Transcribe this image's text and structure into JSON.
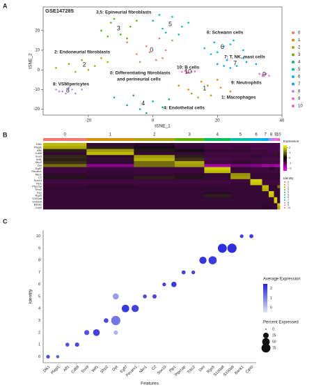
{
  "chart_data": [
    {
      "type": "scatter",
      "panel": "A",
      "title": "GSE147285",
      "x_label": "tSNE_1",
      "y_label": "tSNE_2",
      "xlim": [
        -34,
        40
      ],
      "ylim": [
        -23,
        32
      ],
      "xticks": [
        -20,
        0,
        20,
        40
      ],
      "yticks": [
        -20,
        -10,
        0,
        10,
        20
      ],
      "series": [
        {
          "name": "0",
          "color": "#F8766D",
          "x": [
            -8,
            -5,
            -2,
            1,
            4,
            6,
            -4,
            2,
            -1,
            3
          ],
          "y": [
            14,
            8,
            12,
            5,
            10,
            15,
            4,
            16,
            9,
            6
          ]
        },
        {
          "name": "1",
          "color": "#DB8E00",
          "x": [
            8,
            12,
            15,
            18,
            21,
            24,
            14,
            20,
            11,
            17
          ],
          "y": [
            -8,
            -12,
            -6,
            -13,
            -9,
            -11,
            -14,
            -5,
            -10,
            -8
          ]
        },
        {
          "name": "2",
          "color": "#AEA200",
          "x": [
            -30,
            -26,
            -22,
            -18,
            -14,
            -20,
            -24,
            -16
          ],
          "y": [
            1,
            3,
            5,
            2,
            4,
            0,
            -1,
            6
          ]
        },
        {
          "name": "3",
          "color": "#64B200",
          "x": [
            -16,
            -13,
            -10,
            -7,
            -12,
            -8,
            -14,
            -5
          ],
          "y": [
            20,
            24,
            18,
            22,
            26,
            16,
            17,
            25
          ]
        },
        {
          "name": "4",
          "color": "#00BD5C",
          "x": [
            -12,
            -8,
            -4,
            0,
            3,
            -6,
            -2,
            5
          ],
          "y": [
            -14,
            -18,
            -20,
            -16,
            -19,
            -13,
            -22,
            -15
          ]
        },
        {
          "name": "5",
          "color": "#00C1A7",
          "x": [
            0,
            3,
            6,
            9,
            11,
            4,
            8,
            2
          ],
          "y": [
            25,
            21,
            27,
            22,
            24,
            19,
            18,
            28
          ]
        },
        {
          "name": "6",
          "color": "#00BADE",
          "x": [
            16,
            19,
            22,
            25,
            28,
            20,
            24,
            18
          ],
          "y": [
            11,
            14,
            12,
            15,
            10,
            9,
            13,
            8
          ]
        },
        {
          "name": "7",
          "color": "#00A6FF",
          "x": [
            20,
            23,
            26,
            29,
            32,
            24,
            28,
            22
          ],
          "y": [
            3,
            5,
            2,
            4,
            3,
            1,
            6,
            2
          ]
        },
        {
          "name": "8",
          "color": "#B385FF",
          "x": [
            -30,
            -28,
            -26,
            -24,
            -22,
            -27,
            -25,
            -29
          ],
          "y": [
            -10,
            -11,
            -9,
            -12,
            -10,
            -12,
            -10,
            -11
          ]
        },
        {
          "name": "9",
          "color": "#EF67EB",
          "x": [
            33,
            34,
            35,
            36,
            34,
            35
          ],
          "y": [
            -2,
            -3,
            -2,
            -3,
            -2.5,
            -2
          ]
        },
        {
          "name": "10",
          "color": "#FF63B6",
          "x": [
            9,
            10,
            11,
            12,
            13,
            10.5
          ],
          "y": [
            -1,
            -0.5,
            -1.5,
            -1,
            -0.8,
            -1.2
          ]
        }
      ],
      "annotations": [
        "3,5: Epineurial fibroblasts",
        "6: Schwann cells",
        "2: Endoneurial fibroblasts",
        "7: T, NK, mast cells",
        "10: B cells",
        "0: Differentiating fibroblasts",
        "and perineurial cells",
        "8: VSM/pericytes",
        "9: Neutrophils",
        "1: Macrophages",
        "4: Endothelial cells"
      ]
    },
    {
      "type": "heatmap",
      "panel": "B",
      "categories": [
        "0",
        "1",
        "2",
        "3",
        "4",
        "5",
        "6",
        "7",
        "8",
        "9",
        "10"
      ],
      "cells": [
        264,
        288,
        248,
        180,
        160,
        120,
        72,
        40,
        32,
        20,
        16
      ],
      "colors": [
        "#F8766D",
        "#DB8E00",
        "#AEA200",
        "#64B200",
        "#00BD5C",
        "#00C1A7",
        "#00BADE",
        "#00A6FF",
        "#B385FF",
        "#EF67EB",
        "#FF63B6"
      ],
      "rows": [
        "Dlk1",
        "Plagl1",
        "Aff1",
        "Cd68",
        "Sox9",
        "Wif1",
        "Sfrp2",
        "Dpt",
        "Egfl7",
        "Pecam1",
        "Nkn1",
        "C2",
        "Sox10",
        "Plp1",
        "Ptprcap",
        "Trbc2",
        "Des",
        "Rgs5",
        "S100a8",
        "S100a9",
        "Bank1",
        "Cd40"
      ],
      "values": [
        [
          1.8,
          -0.3,
          -0.2,
          -0.4,
          -0.5,
          -0.5,
          -0.5,
          -0.5,
          -0.5,
          -0.5,
          -0.5
        ],
        [
          1.6,
          0.2,
          0,
          -0.3,
          -0.5,
          -0.4,
          -0.5,
          -0.5,
          -0.5,
          -0.5,
          -0.5
        ],
        [
          0.2,
          1.5,
          0.1,
          0,
          -0.3,
          -0.3,
          -0.4,
          -0.4,
          -0.5,
          -0.5,
          -0.5
        ],
        [
          -0.3,
          1.8,
          -0.3,
          -0.3,
          -0.4,
          -0.4,
          -0.4,
          -0.4,
          -0.4,
          0.2,
          -0.4
        ],
        [
          0.3,
          -0.2,
          1.5,
          0.2,
          -0.4,
          -0.4,
          -0.3,
          -0.4,
          -0.4,
          -0.4,
          -0.4
        ],
        [
          0.2,
          -0.3,
          1.7,
          0.4,
          -0.5,
          -0.4,
          -0.4,
          -0.5,
          -0.5,
          -0.5,
          -0.5
        ],
        [
          0.4,
          -0.3,
          1.0,
          1.6,
          -0.4,
          -0.3,
          -0.4,
          -0.4,
          -0.4,
          -0.4,
          -0.4
        ],
        [
          1.0,
          -1.2,
          1.0,
          1.5,
          -1.5,
          -1.0,
          -1.2,
          -1.5,
          -1.3,
          -1.5,
          -1.5
        ],
        [
          -0.4,
          -0.4,
          -0.4,
          -0.4,
          2.0,
          -0.3,
          -0.4,
          -0.4,
          -0.2,
          -0.4,
          -0.4
        ],
        [
          -0.4,
          -0.3,
          -0.4,
          -0.4,
          1.8,
          -0.4,
          -0.4,
          -0.4,
          -0.4,
          -0.4,
          -0.4
        ],
        [
          -0.2,
          -0.3,
          -0.3,
          -0.2,
          -0.3,
          1.4,
          -0.3,
          -0.3,
          -0.3,
          -0.3,
          -0.3
        ],
        [
          0.1,
          -0.2,
          0.2,
          0.1,
          -0.3,
          1.5,
          -0.3,
          -0.3,
          -0.3,
          -0.3,
          -0.3
        ],
        [
          -0.4,
          -0.4,
          -0.4,
          -0.4,
          -0.4,
          -0.4,
          2.0,
          -0.4,
          -0.4,
          -0.4,
          -0.4
        ],
        [
          -0.4,
          -0.4,
          -0.4,
          -0.4,
          -0.4,
          -0.3,
          1.9,
          -0.4,
          -0.4,
          -0.4,
          -0.4
        ],
        [
          -0.3,
          -0.2,
          -0.3,
          -0.3,
          -0.3,
          -0.3,
          -0.3,
          1.8,
          -0.3,
          -0.2,
          1.0
        ],
        [
          -0.3,
          -0.3,
          -0.3,
          -0.3,
          -0.3,
          -0.3,
          -0.3,
          1.7,
          -0.3,
          -0.3,
          -0.3
        ],
        [
          -0.3,
          -0.3,
          -0.3,
          -0.3,
          -0.2,
          -0.3,
          -0.3,
          -0.3,
          2.0,
          -0.3,
          -0.3
        ],
        [
          -0.3,
          -0.3,
          -0.3,
          -0.3,
          0.2,
          -0.3,
          -0.3,
          -0.3,
          1.9,
          -0.3,
          -0.3
        ],
        [
          -0.3,
          -0.3,
          -0.3,
          -0.3,
          -0.3,
          -0.3,
          -0.3,
          -0.3,
          -0.3,
          2.0,
          -0.3
        ],
        [
          -0.3,
          -0.3,
          -0.3,
          -0.3,
          -0.3,
          -0.3,
          -0.3,
          -0.3,
          -0.3,
          2.0,
          -0.3
        ],
        [
          -0.3,
          -0.3,
          -0.3,
          -0.3,
          -0.3,
          -0.3,
          -0.3,
          -0.2,
          -0.3,
          -0.3,
          1.9
        ],
        [
          -0.3,
          -0.3,
          -0.3,
          -0.3,
          -0.3,
          -0.3,
          -0.3,
          -0.2,
          -0.3,
          -0.3,
          1.6
        ]
      ],
      "legend_title": "Expression",
      "zlim": [
        -2.5,
        2.5
      ],
      "zticks": [
        2,
        1,
        0,
        -1,
        -2
      ],
      "identity_title": "Identity"
    },
    {
      "type": "dot",
      "panel": "C",
      "x_label": "Features",
      "y_label": "Identity",
      "features": [
        "Dlk1",
        "Plagl1",
        "Aff1",
        "Cd68",
        "Sox9",
        "Wif1",
        "Sfrp2",
        "Dpt",
        "Egfl7",
        "Pecam1",
        "Nkn1",
        "C2",
        "Sox10",
        "Plp1",
        "Ptprcap",
        "Trbc2",
        "Des",
        "Rgs5",
        "S100a8",
        "S100a9",
        "Bank1",
        "Cd40"
      ],
      "identities": [
        "0",
        "1",
        "2",
        "3",
        "4",
        "5",
        "6",
        "7",
        "8",
        "9",
        "10"
      ],
      "dots": [
        {
          "feature": "Dlk1",
          "identity": "0",
          "pct": 8,
          "avg": 1.8
        },
        {
          "feature": "Plagl1",
          "identity": "0",
          "pct": 5,
          "avg": 1.6
        },
        {
          "feature": "Aff1",
          "identity": "1",
          "pct": 10,
          "avg": 1.7
        },
        {
          "feature": "Cd68",
          "identity": "1",
          "pct": 12,
          "avg": 1.9
        },
        {
          "feature": "Sox9",
          "identity": "2",
          "pct": 18,
          "avg": 1.8
        },
        {
          "feature": "Wif1",
          "identity": "2",
          "pct": 38,
          "avg": 2.0
        },
        {
          "feature": "Sfrp2",
          "identity": "3",
          "pct": 15,
          "avg": 1.9
        },
        {
          "feature": "Dpt",
          "identity": "3",
          "pct": 80,
          "avg": 1.2
        },
        {
          "feature": "Dpt",
          "identity": "5",
          "pct": 30,
          "avg": 0.6
        },
        {
          "feature": "Dpt",
          "identity": "2",
          "pct": 12,
          "avg": 0.3
        },
        {
          "feature": "Egfl7",
          "identity": "4",
          "pct": 50,
          "avg": 2.1
        },
        {
          "feature": "Pecam1",
          "identity": "4",
          "pct": 45,
          "avg": 2.0
        },
        {
          "feature": "Nkn1",
          "identity": "5",
          "pct": 10,
          "avg": 1.8
        },
        {
          "feature": "C2",
          "identity": "5",
          "pct": 12,
          "avg": 1.9
        },
        {
          "feature": "Sox10",
          "identity": "6",
          "pct": 8,
          "avg": 2.0
        },
        {
          "feature": "Plp1",
          "identity": "6",
          "pct": 22,
          "avg": 2.1
        },
        {
          "feature": "Ptprcap",
          "identity": "7",
          "pct": 10,
          "avg": 2.0
        },
        {
          "feature": "Trbc2",
          "identity": "7",
          "pct": 8,
          "avg": 2.0
        },
        {
          "feature": "Des",
          "identity": "8",
          "pct": 45,
          "avg": 2.2
        },
        {
          "feature": "Rgs5",
          "identity": "8",
          "pct": 60,
          "avg": 2.1
        },
        {
          "feature": "S100a8",
          "identity": "9",
          "pct": 75,
          "avg": 2.3
        },
        {
          "feature": "S100a9",
          "identity": "9",
          "pct": 80,
          "avg": 2.3
        },
        {
          "feature": "Bank1",
          "identity": "10",
          "pct": 8,
          "avg": 2.0
        },
        {
          "feature": "Cd40",
          "identity": "10",
          "pct": 10,
          "avg": 2.1
        }
      ],
      "color_title": "Average Expression",
      "color_lim": [
        -0.5,
        2.5
      ],
      "color_ticks": [
        2,
        1,
        0
      ],
      "size_title": "Percent Expressed",
      "size_ticks": [
        0,
        25,
        50,
        75
      ]
    }
  ]
}
